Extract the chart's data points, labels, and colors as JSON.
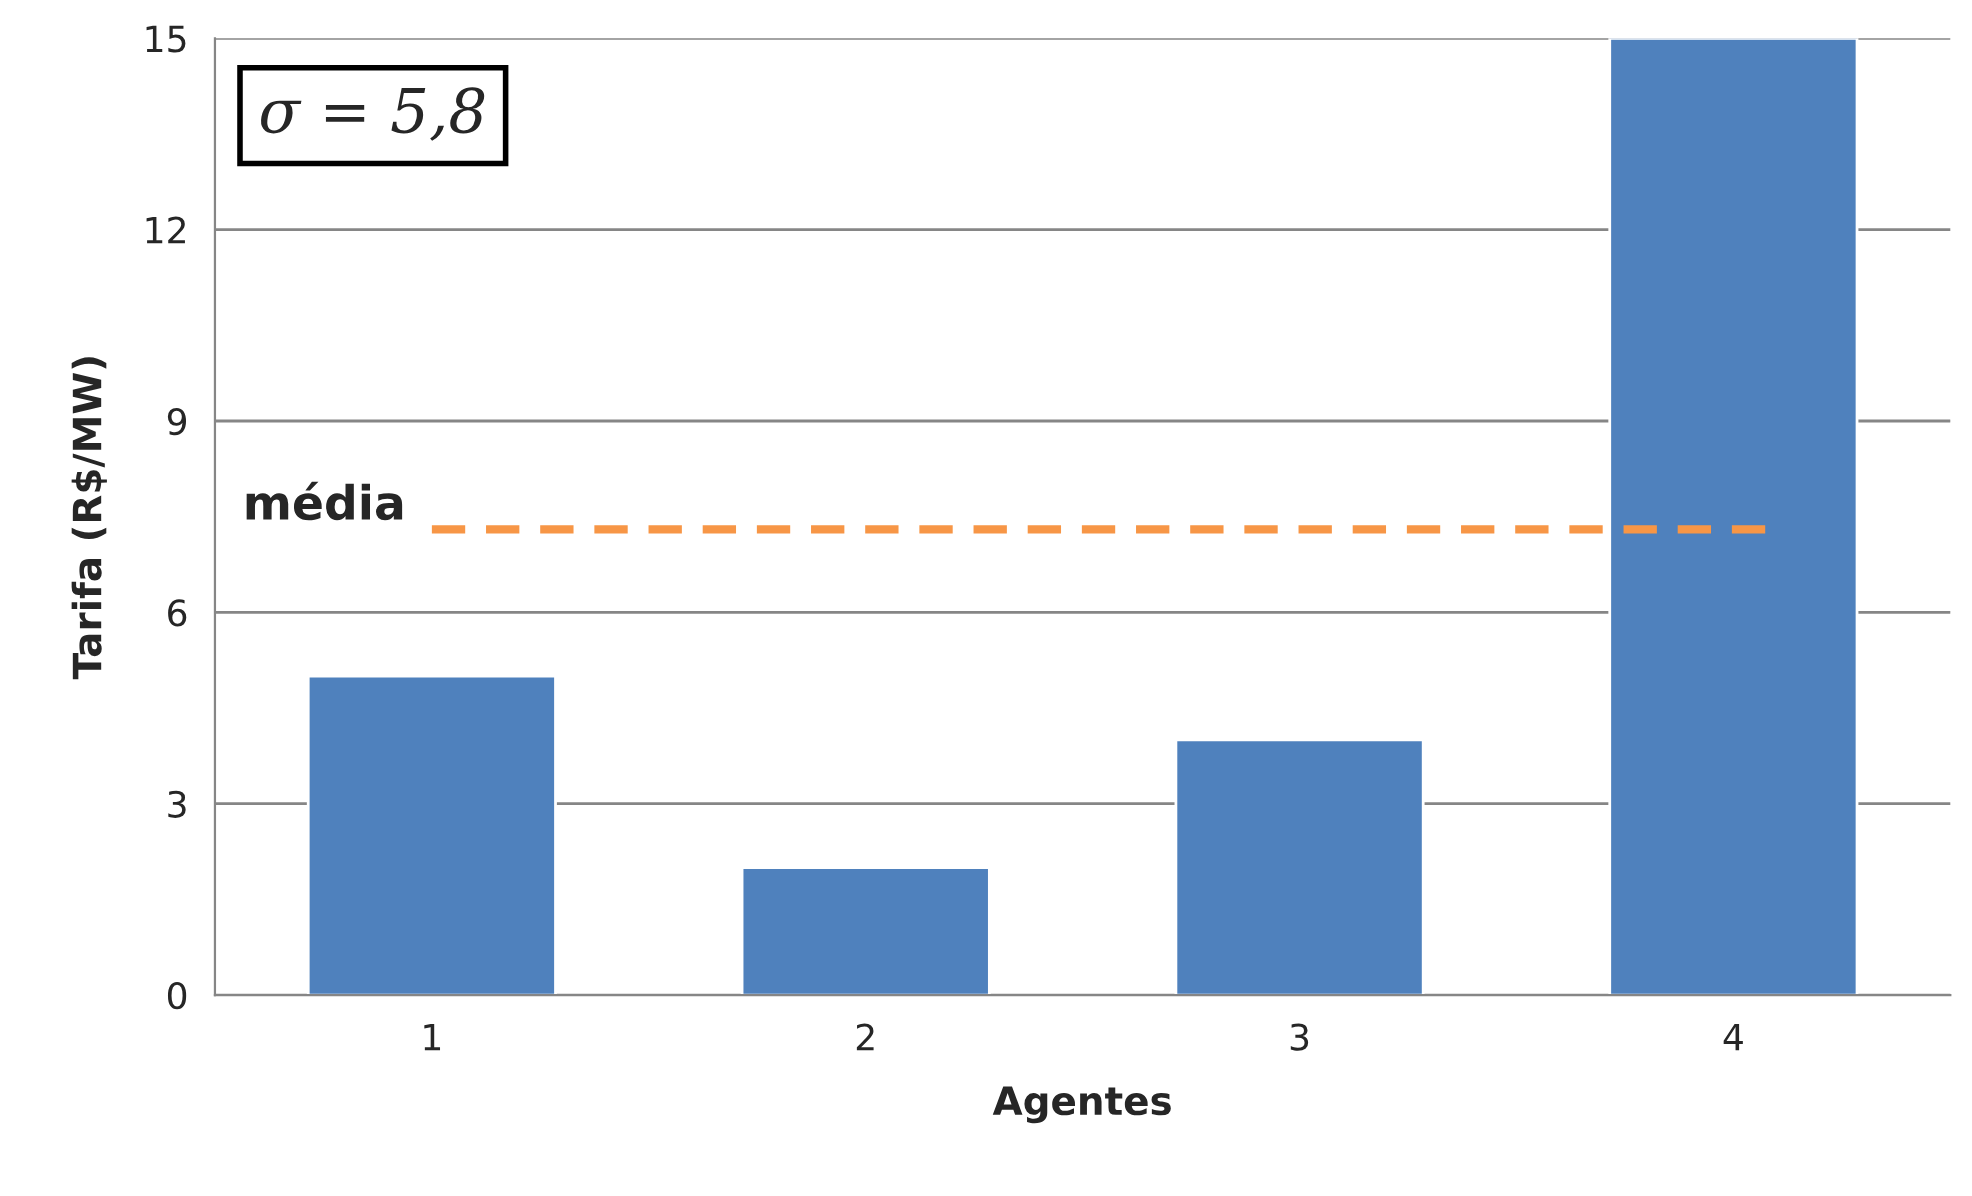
{
  "chart_data": {
    "type": "bar",
    "xlabel": "Agentes",
    "ylabel": "Tarifa (R$/MW)",
    "categories": [
      "1",
      "2",
      "3",
      "4"
    ],
    "values": [
      5,
      2,
      4,
      15
    ],
    "color": "#4f81bd",
    "ylim": [
      0,
      15
    ],
    "yticks": [
      0,
      3,
      6,
      9,
      12,
      15
    ],
    "grid": "y",
    "ref_lines": [
      {
        "axis": "y",
        "value": 7.3,
        "label": "média",
        "color": "#f79646",
        "line_style": "dashed"
      }
    ],
    "annotations": [
      "σ = 5,8"
    ]
  }
}
